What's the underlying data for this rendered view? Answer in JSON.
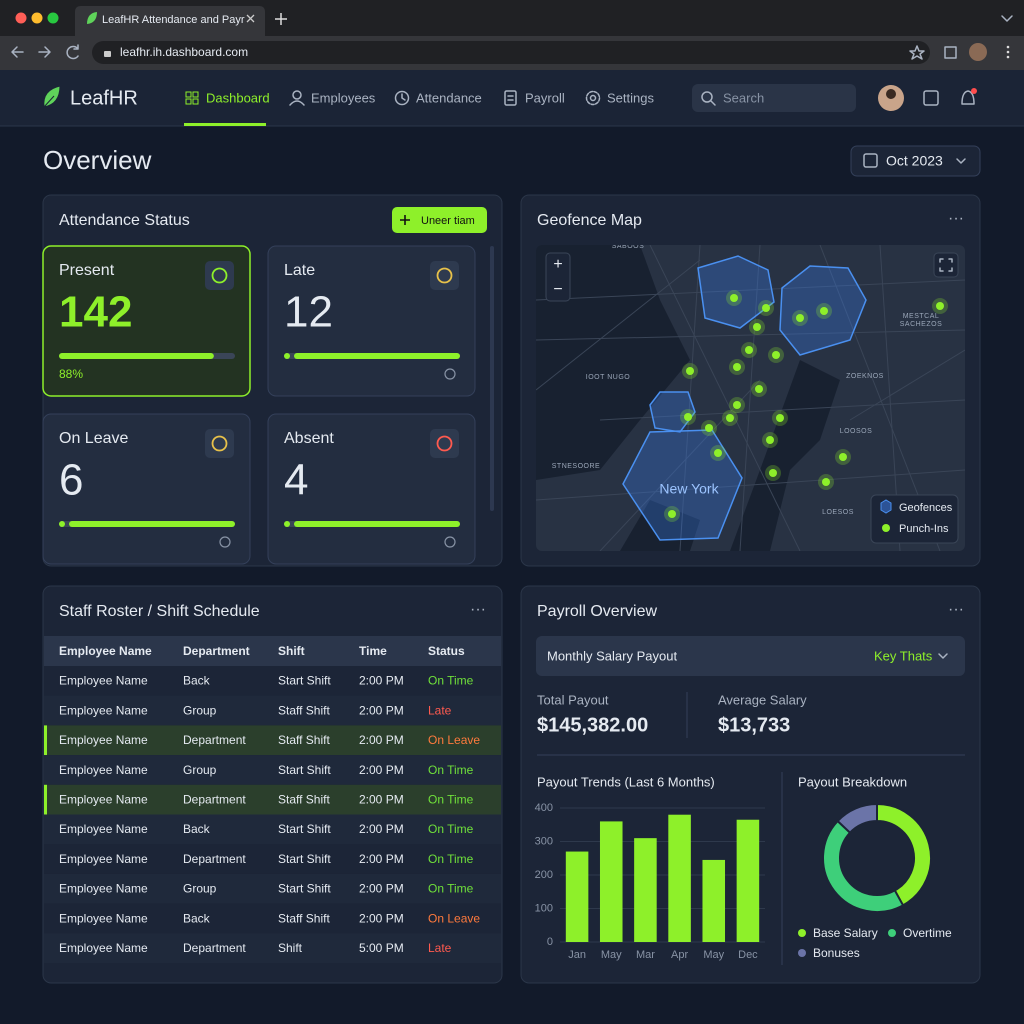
{
  "browser": {
    "tab_title": "LeafHR Attendance and Payr",
    "url": "leafhr.ih.dashboard.com"
  },
  "nav": {
    "brand": "LeafHR",
    "items": [
      "Dashboard",
      "Employees",
      "Attendance",
      "Payroll",
      "Settings"
    ],
    "search_placeholder": "Search"
  },
  "header": {
    "title": "Overview",
    "date": "Oct 2023"
  },
  "attendance": {
    "title": "Attendance Status",
    "button": "Uneer tiam",
    "cards": [
      {
        "label": "Present",
        "value": 142,
        "percent": 88,
        "percent_label": "88%"
      },
      {
        "label": "Late",
        "value": 12
      },
      {
        "label": "On Leave",
        "value": 6
      },
      {
        "label": "Absent",
        "value": 4
      }
    ]
  },
  "map": {
    "title": "Geofence Map",
    "city_label": "New York",
    "place_labels": [
      "SABOOS",
      "IOOT NUGO",
      "ZOEKNOS",
      "MESTCAL",
      "SACHEZOS",
      "STNESOORE",
      "LOOSOS",
      "LOESOS"
    ],
    "legend": [
      "Geofences",
      "Punch-Ins"
    ]
  },
  "roster": {
    "title": "Staff Roster / Shift Schedule",
    "columns": [
      "Employee Name",
      "Department",
      "Shift",
      "Time",
      "Status"
    ],
    "rows": [
      {
        "cells": [
          "Employee Name",
          "Back",
          "Start Shift",
          "2:00 PM",
          "On Time"
        ],
        "status_color": "#6fe03a"
      },
      {
        "cells": [
          "Employee Name",
          "Group",
          "Staff Shift",
          "2:00 PM",
          "Late"
        ],
        "status_color": "#ff5a4f"
      },
      {
        "cells": [
          "Employee Name",
          "Department",
          "Staff Shift",
          "2:00 PM",
          "On Leave"
        ],
        "status_color": "#ff7a3d",
        "highlight": true
      },
      {
        "cells": [
          "Employee Name",
          "Group",
          "Start Shift",
          "2:00 PM",
          "On Time"
        ],
        "status_color": "#6fe03a"
      },
      {
        "cells": [
          "Employee Name",
          "Department",
          "Staff Shift",
          "2:00 PM",
          "On Time"
        ],
        "status_color": "#6fe03a",
        "highlight": true
      },
      {
        "cells": [
          "Employee Name",
          "Back",
          "Start Shift",
          "2:00 PM",
          "On Time"
        ],
        "status_color": "#6fe03a"
      },
      {
        "cells": [
          "Employee Name",
          "Department",
          "Start Shift",
          "2:00 PM",
          "On Time"
        ],
        "status_color": "#6fe03a"
      },
      {
        "cells": [
          "Employee Name",
          "Group",
          "Start Shift",
          "2:00 PM",
          "On Time"
        ],
        "status_color": "#6fe03a"
      },
      {
        "cells": [
          "Employee Name",
          "Back",
          "Staff Shift",
          "2:00 PM",
          "On Leave"
        ],
        "status_color": "#ff7a3d"
      },
      {
        "cells": [
          "Employee Name",
          "Department",
          "Shift",
          "5:00 PM",
          "Late"
        ],
        "status_color": "#ff5a4f"
      }
    ]
  },
  "payroll": {
    "title": "Payroll Overview",
    "dropdown": "Monthly Salary Payout",
    "dropdown_action": "Key Thats",
    "total_label": "Total Payout",
    "total_value": "$145,382.00",
    "average_label": "Average Salary",
    "average_value": "$13,733",
    "trend_chart": {
      "type": "bar",
      "title": "Payout Trends (Last 6 Months)",
      "categories": [
        "Jan",
        "May",
        "Mar",
        "Apr",
        "May",
        "Dec"
      ],
      "values": [
        270,
        360,
        310,
        380,
        245,
        365
      ],
      "color": "#8ef02a",
      "ylim": [
        0,
        400
      ],
      "yticks": [
        0,
        100,
        200,
        300,
        400
      ],
      "grid": true
    },
    "breakdown_chart": {
      "type": "pie",
      "title": "Payout Breakdown",
      "donut": true,
      "series": [
        {
          "name": "Base Salary",
          "color": "#8ef02a",
          "value": 42
        },
        {
          "name": "Overtime",
          "color": "#3ecf7a",
          "value": 45
        },
        {
          "name": "Bonuses",
          "color": "#6b74a8",
          "value": 13
        }
      ]
    }
  }
}
